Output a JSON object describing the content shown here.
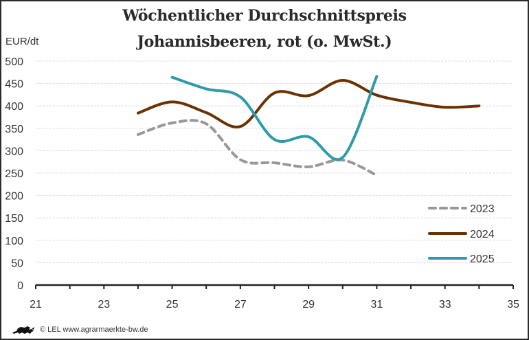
{
  "chart_data": {
    "type": "line",
    "title": "Wöchentlicher Durchschnittspreis",
    "subtitle": "Johannisbeeren, rot (o. MwSt.)",
    "ylabel": "EUR/dt",
    "xlabel": "",
    "xlim": [
      21,
      35
    ],
    "ylim": [
      0,
      500
    ],
    "xticks": [
      21,
      23,
      25,
      27,
      29,
      31,
      33,
      35
    ],
    "yticks": [
      0,
      50,
      100,
      150,
      200,
      250,
      300,
      350,
      400,
      450,
      500
    ],
    "grid": "horizontal dashed",
    "legend_position": "bottom-right",
    "series": [
      {
        "name": "2023",
        "color": "#9a9797",
        "style": "dashed",
        "x": [
          24,
          25,
          26,
          27,
          28,
          29,
          30,
          31
        ],
        "values": [
          336,
          362,
          360,
          280,
          273,
          264,
          279,
          245
        ]
      },
      {
        "name": "2024",
        "color": "#6b3200",
        "style": "solid",
        "x": [
          24,
          25,
          26,
          27,
          28,
          29,
          30,
          31,
          32,
          33,
          34
        ],
        "values": [
          384,
          409,
          385,
          354,
          429,
          423,
          457,
          424,
          408,
          397,
          400
        ]
      },
      {
        "name": "2025",
        "color": "#2f9aaa",
        "style": "solid",
        "x": [
          25,
          26,
          27,
          28,
          29,
          30,
          31
        ],
        "values": [
          464,
          438,
          420,
          325,
          331,
          285,
          466
        ]
      }
    ]
  },
  "footer": {
    "logo_icon": "lion-icon",
    "text": "© LEL www.agrarmaerkte-bw.de"
  }
}
